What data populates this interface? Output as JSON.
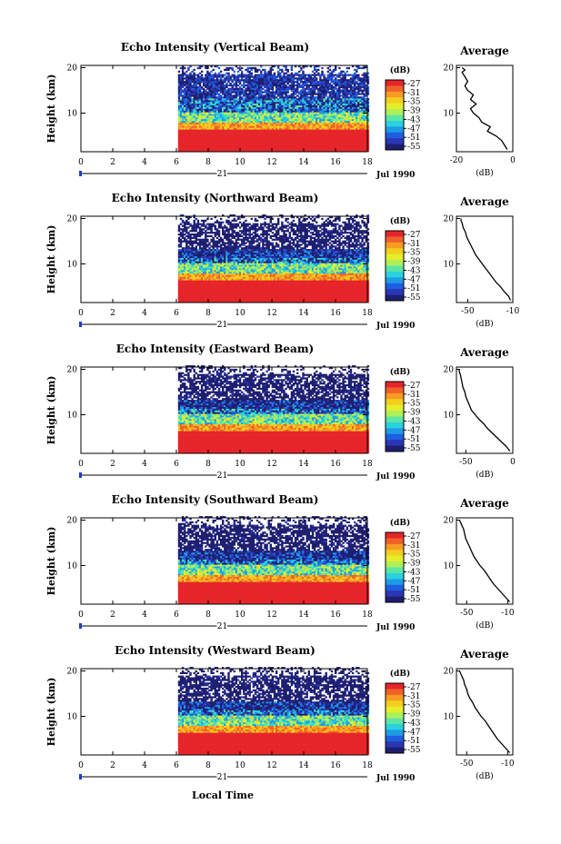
{
  "page": {
    "footer_label": "Local Time"
  },
  "common": {
    "xticks": [
      "0",
      "2",
      "4",
      "6",
      "8",
      "10",
      "12",
      "14",
      "16",
      "18"
    ],
    "yticks": [
      "20",
      "10"
    ],
    "day_label": "21",
    "month_label": "Jul 1990",
    "colorbar_unit": "(dB)",
    "colorbar_ticks": [
      "-27",
      "-31",
      "-35",
      "-39",
      "-43",
      "-47",
      "-51",
      "-55"
    ],
    "colorbar_colors": [
      "#e6252a",
      "#f0602a",
      "#f79b22",
      "#f2cf1e",
      "#e6ee2a",
      "#aef05a",
      "#5ce6a4",
      "#2ad2de",
      "#1e9be6",
      "#1e5fe0",
      "#2a36b4",
      "#1e1e70"
    ],
    "ylabel": "Height (km)",
    "avg_title": "Average",
    "avg_xlabel": "(dB)"
  },
  "chart_data": [
    {
      "type": "heatmap",
      "title": "Echo Intensity (Vertical Beam)",
      "xlabel": "Local Time",
      "ylabel": "Height (km)",
      "xlim": [
        0,
        18
      ],
      "ylim": [
        1.5,
        20.5
      ],
      "data_start_hour": 6.1,
      "zrange": [
        -55,
        -27
      ],
      "colorbar_ticks": [
        -27,
        -31,
        -35,
        -39,
        -43,
        -47,
        -51,
        -55
      ],
      "average_profile": {
        "xlim": [
          -20,
          0
        ],
        "xticks": [
          "-20",
          "0"
        ],
        "x": [
          -2,
          -3,
          -4,
          -6,
          -9,
          -8,
          -11,
          -12,
          -14,
          -15,
          -13,
          -15,
          -14,
          -16,
          -17,
          -16,
          -17,
          -18,
          -17,
          -18
        ],
        "y": [
          2,
          3,
          4,
          5,
          6,
          7,
          8,
          9,
          10,
          11,
          12,
          13,
          14,
          15,
          16,
          17,
          18,
          19,
          19.5,
          20
        ]
      }
    },
    {
      "type": "heatmap",
      "title": "Echo Intensity (Northward Beam)",
      "xlabel": "Local Time",
      "ylabel": "Height (km)",
      "xlim": [
        0,
        18
      ],
      "ylim": [
        1.5,
        20.5
      ],
      "data_start_hour": 6.1,
      "zrange": [
        -55,
        -27
      ],
      "colorbar_ticks": [
        -27,
        -31,
        -35,
        -39,
        -43,
        -47,
        -51,
        -55
      ],
      "average_profile": {
        "xlim": [
          -60,
          -10
        ],
        "xticks": [
          "-50",
          "-10"
        ],
        "x": [
          -12,
          -14,
          -18,
          -21,
          -25,
          -28,
          -31,
          -34,
          -37,
          -40,
          -43,
          -45,
          -47,
          -49,
          -51,
          -52,
          -54,
          -55,
          -56,
          -56
        ],
        "y": [
          2,
          3,
          4,
          5,
          6,
          7,
          8,
          9,
          10,
          11,
          12,
          13,
          14,
          15,
          16,
          17,
          18,
          19,
          19.5,
          20
        ]
      }
    },
    {
      "type": "heatmap",
      "title": "Echo Intensity (Eastward Beam)",
      "xlabel": "Local Time",
      "ylabel": "Height (km)",
      "xlim": [
        0,
        18
      ],
      "ylim": [
        1.5,
        20.5
      ],
      "data_start_hour": 6.1,
      "zrange": [
        -55,
        -27
      ],
      "colorbar_ticks": [
        -27,
        -31,
        -35,
        -39,
        -43,
        -47,
        -51,
        -55
      ],
      "average_profile": {
        "xlim": [
          -60,
          0
        ],
        "xticks": [
          "-50",
          "0"
        ],
        "x": [
          -3,
          -7,
          -12,
          -17,
          -22,
          -27,
          -31,
          -36,
          -40,
          -44,
          -46,
          -48,
          -50,
          -51,
          -53,
          -54,
          -55,
          -56,
          -57,
          -57
        ],
        "y": [
          2,
          3,
          4,
          5,
          6,
          7,
          8,
          9,
          10,
          11,
          12,
          13,
          14,
          15,
          16,
          17,
          18,
          19,
          19.5,
          20
        ]
      }
    },
    {
      "type": "heatmap",
      "title": "Echo Intensity (Southward Beam)",
      "xlabel": "Local Time",
      "ylabel": "Height (km)",
      "xlim": [
        0,
        18
      ],
      "ylim": [
        1.5,
        20.5
      ],
      "data_start_hour": 6.1,
      "zrange": [
        -55,
        -27
      ],
      "colorbar_ticks": [
        -27,
        -31,
        -35,
        -39,
        -43,
        -47,
        -51,
        -55
      ],
      "average_profile": {
        "xlim": [
          -60,
          -5
        ],
        "xticks": [
          "-50",
          "-10"
        ],
        "x": [
          -8,
          -12,
          -16,
          -20,
          -24,
          -27,
          -30,
          -33,
          -37,
          -40,
          -43,
          -45,
          -47,
          -49,
          -51,
          -52,
          -53,
          -55,
          -56,
          -57
        ],
        "y": [
          2,
          3,
          4,
          5,
          6,
          7,
          8,
          9,
          10,
          11,
          12,
          13,
          14,
          15,
          16,
          17,
          18,
          19,
          19.5,
          20
        ]
      }
    },
    {
      "type": "heatmap",
      "title": "Echo Intensity (Westward Beam)",
      "xlabel": "Local Time",
      "ylabel": "Height (km)",
      "xlim": [
        0,
        18
      ],
      "ylim": [
        1.5,
        20.5
      ],
      "data_start_hour": 6.1,
      "zrange": [
        -55,
        -27
      ],
      "colorbar_ticks": [
        -27,
        -31,
        -35,
        -39,
        -43,
        -47,
        -51,
        -55
      ],
      "average_profile": {
        "xlim": [
          -60,
          -5
        ],
        "xticks": [
          "-50",
          "-10"
        ],
        "x": [
          -8,
          -12,
          -16,
          -20,
          -23,
          -26,
          -29,
          -32,
          -36,
          -39,
          -42,
          -44,
          -47,
          -49,
          -50,
          -52,
          -53,
          -55,
          -56,
          -57
        ],
        "y": [
          2,
          3,
          4,
          5,
          6,
          7,
          8,
          9,
          10,
          11,
          12,
          13,
          14,
          15,
          16,
          17,
          18,
          19,
          19.5,
          20
        ]
      }
    }
  ]
}
